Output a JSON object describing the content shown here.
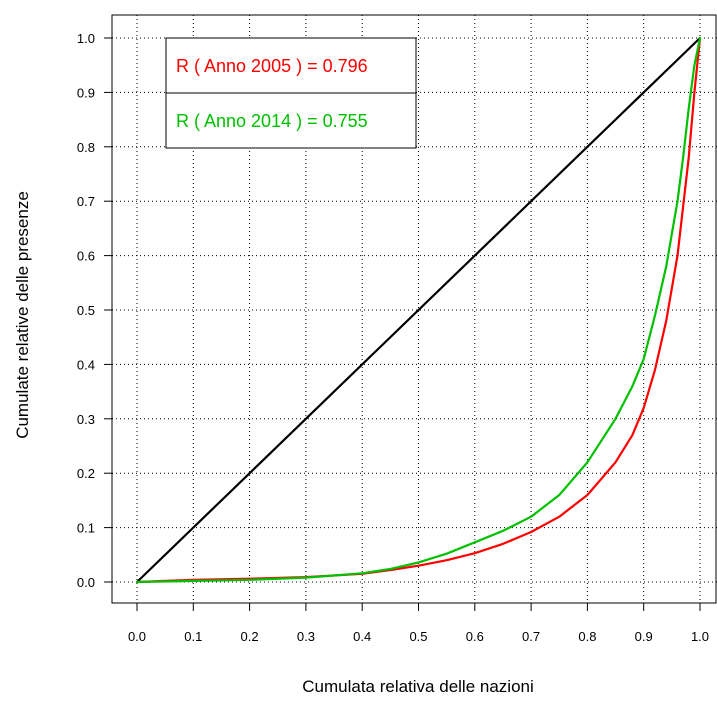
{
  "chart_data": {
    "type": "line",
    "title": "",
    "xlabel": "Cumulata relativa delle nazioni",
    "ylabel": "Cumulate relative delle presenze",
    "xlim": [
      0.0,
      1.0
    ],
    "ylim": [
      0.0,
      1.0
    ],
    "x_ticks": [
      "0.0",
      "0.1",
      "0.2",
      "0.3",
      "0.4",
      "0.5",
      "0.6",
      "0.7",
      "0.8",
      "0.9",
      "1.0"
    ],
    "y_ticks": [
      "0.0",
      "0.1",
      "0.2",
      "0.3",
      "0.4",
      "0.5",
      "0.6",
      "0.7",
      "0.8",
      "0.9",
      "1.0"
    ],
    "grid": true,
    "legend_position": "top-left",
    "legend": [
      {
        "text": "R ( Anno 2005 ) = 0.796",
        "color": "#ff0000"
      },
      {
        "text": "R ( Anno 2014 ) = 0.755",
        "color": "#00c000"
      }
    ],
    "series": [
      {
        "color": "#000000",
        "x": [
          0.0,
          1.0
        ],
        "y": [
          0.0,
          1.0
        ]
      },
      {
        "color": "#ff0000",
        "x": [
          0.0,
          0.1,
          0.2,
          0.3,
          0.4,
          0.45,
          0.5,
          0.55,
          0.6,
          0.65,
          0.7,
          0.75,
          0.8,
          0.85,
          0.88,
          0.9,
          0.92,
          0.94,
          0.96,
          0.98,
          0.99,
          1.0
        ],
        "y": [
          0.0,
          0.004,
          0.006,
          0.009,
          0.015,
          0.022,
          0.03,
          0.04,
          0.053,
          0.07,
          0.092,
          0.12,
          0.16,
          0.22,
          0.27,
          0.32,
          0.39,
          0.48,
          0.6,
          0.78,
          0.9,
          1.0
        ]
      },
      {
        "color": "#00c000",
        "x": [
          0.0,
          0.1,
          0.2,
          0.3,
          0.4,
          0.45,
          0.5,
          0.55,
          0.6,
          0.65,
          0.7,
          0.75,
          0.8,
          0.85,
          0.88,
          0.9,
          0.92,
          0.94,
          0.96,
          0.97,
          0.98,
          0.99,
          1.0
        ],
        "y": [
          0.0,
          0.002,
          0.004,
          0.008,
          0.016,
          0.024,
          0.036,
          0.052,
          0.073,
          0.094,
          0.12,
          0.16,
          0.22,
          0.3,
          0.36,
          0.41,
          0.49,
          0.58,
          0.7,
          0.78,
          0.87,
          0.95,
          1.0
        ]
      }
    ]
  }
}
